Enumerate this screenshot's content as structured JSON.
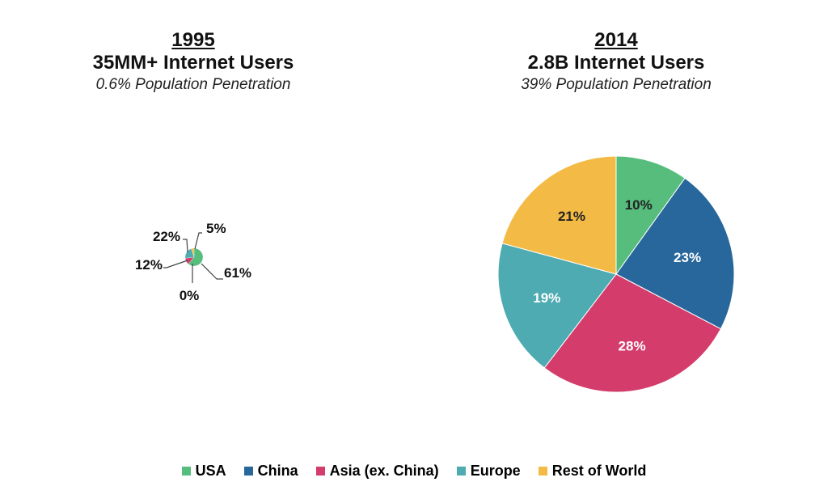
{
  "chart_data": [
    {
      "type": "pie",
      "year": "1995",
      "title": "35MM+ Internet Users",
      "subtitle": "0.6% Population Penetration",
      "categories": [
        "USA",
        "China",
        "Asia (ex. China)",
        "Europe",
        "Rest of World"
      ],
      "values": [
        61,
        0,
        12,
        22,
        5
      ],
      "labels": [
        "61%",
        "0%",
        "12%",
        "22%",
        "5%"
      ]
    },
    {
      "type": "pie",
      "year": "2014",
      "title": "2.8B Internet Users",
      "subtitle": "39% Population Penetration",
      "categories": [
        "USA",
        "China",
        "Asia (ex. China)",
        "Europe",
        "Rest of World"
      ],
      "values": [
        10,
        23,
        28,
        19,
        21
      ],
      "labels": [
        "10%",
        "23%",
        "28%",
        "19%",
        "21%"
      ]
    }
  ],
  "legend": [
    {
      "label": "USA",
      "color": "#56bd7d"
    },
    {
      "label": "China",
      "color": "#27679c"
    },
    {
      "label": "Asia (ex. China)",
      "color": "#d43d6b"
    },
    {
      "label": "Europe",
      "color": "#4eabb2"
    },
    {
      "label": "Rest of World",
      "color": "#f3bb45"
    }
  ]
}
